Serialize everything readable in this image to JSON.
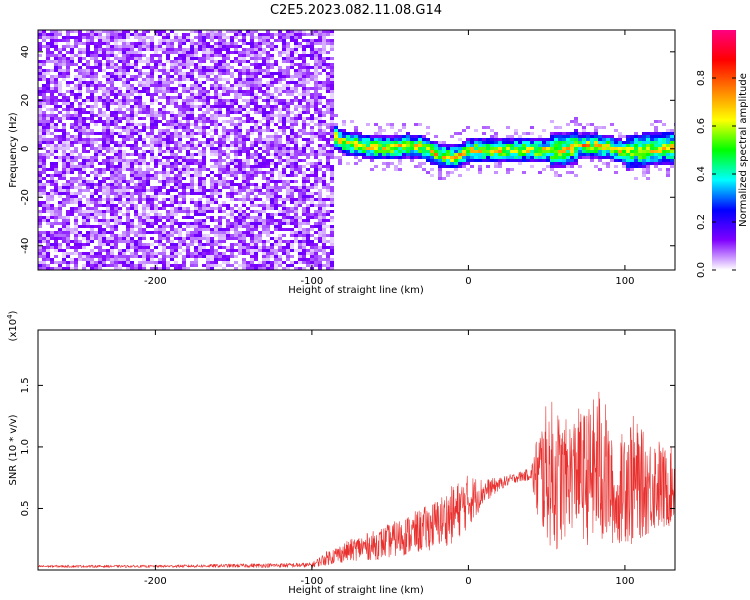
{
  "title": "C2E5.2023.082.11.08.G14",
  "colors": {
    "snr_line": "#e8312f",
    "spectrogram_low": "#7f00ff",
    "frame": "#000000"
  },
  "chart_data": [
    {
      "type": "heatmap",
      "name_hint": "spectrogram",
      "xlabel": "Height of straight line (km)",
      "ylabel": "Frequency (Hz)",
      "xlim": [
        -275,
        132
      ],
      "ylim": [
        -50,
        49
      ],
      "x_ticks": [
        -200,
        -100,
        0,
        100
      ],
      "x_tick_labels": [
        "-200",
        "-100",
        "0",
        "100"
      ],
      "y_ticks": [
        -40,
        -20,
        0,
        20,
        40
      ],
      "y_tick_labels": [
        "-40",
        "-20",
        "0",
        "20",
        "40"
      ],
      "grid": false,
      "colorbar": {
        "label": "Normalized spectral amplitude",
        "range": [
          0.0,
          1.0
        ],
        "ticks": [
          0.0,
          0.2,
          0.4,
          0.6,
          0.8
        ],
        "tick_labels": [
          "0.0",
          "0.2",
          "0.4",
          "0.6",
          "0.8"
        ],
        "colormap": [
          "#ffffff",
          "#7f00ff",
          "#0000ff",
          "#00ffff",
          "#00ff00",
          "#ffff00",
          "#ff8000",
          "#ff0000",
          "#ff0080"
        ]
      },
      "regions": [
        {
          "x_range": [
            -275,
            -87
          ],
          "y_range": [
            -50,
            49
          ],
          "amplitude": "0.0-0.15",
          "pattern": "speckle"
        },
        {
          "x_range": [
            -87,
            132
          ],
          "y_range": [
            -10,
            12
          ],
          "amplitude": "0.2-0.8",
          "pattern": "narrow band near 0 Hz"
        }
      ],
      "band_center_hz": [
        [
          -88,
          6
        ],
        [
          -80,
          3
        ],
        [
          -70,
          2
        ],
        [
          -60,
          1
        ],
        [
          -50,
          1
        ],
        [
          -40,
          2
        ],
        [
          -30,
          1
        ],
        [
          -20,
          -2
        ],
        [
          -10,
          -3
        ],
        [
          0,
          0
        ],
        [
          10,
          0
        ],
        [
          20,
          0
        ],
        [
          30,
          0
        ],
        [
          40,
          0
        ],
        [
          50,
          0
        ],
        [
          60,
          0
        ],
        [
          70,
          2
        ],
        [
          80,
          2
        ],
        [
          90,
          1
        ],
        [
          100,
          -1
        ],
        [
          110,
          0
        ],
        [
          120,
          1
        ],
        [
          132,
          1
        ]
      ]
    },
    {
      "type": "line",
      "name_hint": "snr",
      "xlabel": "Height of straight line (km)",
      "ylabel": "SNR (10 * v/v)",
      "y_multiplier_label": "(x10",
      "y_multiplier_exp": "4",
      "xlim": [
        -275,
        132
      ],
      "ylim": [
        0.0,
        1.95
      ],
      "x_ticks": [
        -200,
        -100,
        0,
        100
      ],
      "x_tick_labels": [
        "-200",
        "-100",
        "0",
        "100"
      ],
      "y_ticks": [
        0.5,
        1.0,
        1.5
      ],
      "y_tick_labels": [
        "0.5",
        "1.0",
        "1.5"
      ],
      "grid": false,
      "series": [
        {
          "x": [
            -275,
            -200,
            -100,
            -90,
            -80,
            -70,
            -60,
            -50,
            -40,
            -30,
            -20,
            -10,
            0,
            10,
            20,
            30,
            40,
            45,
            50,
            55,
            60,
            65,
            70,
            75,
            80,
            85,
            90,
            95,
            100,
            105,
            110,
            115,
            120,
            125,
            132
          ],
          "y": [
            0.03,
            0.03,
            0.04,
            0.1,
            0.14,
            0.18,
            0.2,
            0.24,
            0.28,
            0.32,
            0.38,
            0.45,
            0.56,
            0.64,
            0.7,
            0.75,
            0.78,
            0.75,
            0.8,
            0.75,
            0.72,
            0.78,
            0.82,
            0.75,
            0.8,
            0.85,
            0.7,
            0.5,
            0.78,
            0.72,
            0.7,
            0.68,
            0.72,
            0.65,
            0.7
          ],
          "amp": [
            0.01,
            0.01,
            0.02,
            0.06,
            0.08,
            0.1,
            0.12,
            0.14,
            0.16,
            0.18,
            0.2,
            0.24,
            0.22,
            0.1,
            0.05,
            0.04,
            0.05,
            0.45,
            0.55,
            0.65,
            0.5,
            0.45,
            0.5,
            0.55,
            0.6,
            0.7,
            0.5,
            0.3,
            0.55,
            0.55,
            0.45,
            0.4,
            0.4,
            0.35,
            0.3
          ]
        }
      ]
    }
  ]
}
